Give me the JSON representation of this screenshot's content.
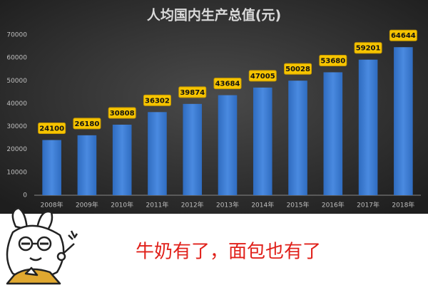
{
  "chart_data": {
    "type": "bar",
    "title": "人均国内生产总值(元)",
    "categories": [
      "2008年",
      "2009年",
      "2010年",
      "2011年",
      "2012年",
      "2013年",
      "2014年",
      "2015年",
      "2016年",
      "2017年",
      "2018年"
    ],
    "values": [
      24100,
      26180,
      30808,
      36302,
      39874,
      43684,
      47005,
      50028,
      53680,
      59201,
      64644
    ],
    "color": "#3a7bd5",
    "ylim": [
      0,
      70000
    ],
    "yticks": [
      0,
      10000,
      20000,
      30000,
      40000,
      50000,
      60000,
      70000
    ],
    "grid": false
  },
  "caption": "牛奶有了，面包也有了"
}
